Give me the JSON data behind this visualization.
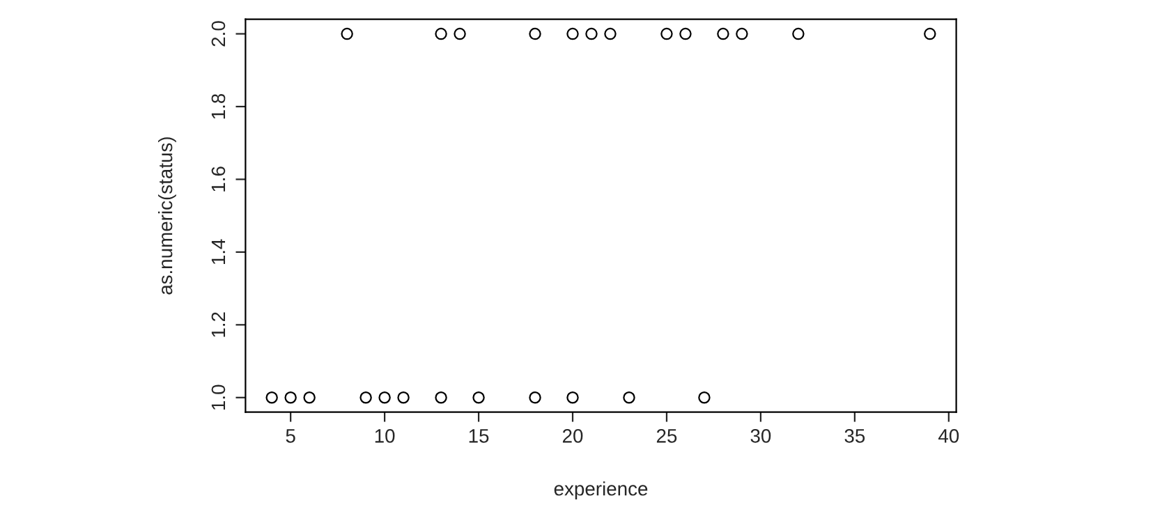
{
  "chart_data": {
    "type": "scatter",
    "xlabel": "experience",
    "ylabel": "as.numeric(status)",
    "series": [
      {
        "color": "#000000",
        "x": [
          8,
          13,
          14,
          18,
          20,
          21,
          22,
          25,
          26,
          28,
          29,
          32,
          39,
          4,
          5,
          6,
          9,
          10,
          11,
          13,
          15,
          18,
          20,
          23,
          27
        ],
        "values": [
          2,
          2,
          2,
          2,
          2,
          2,
          2,
          2,
          2,
          2,
          2,
          2,
          2,
          1,
          1,
          1,
          1,
          1,
          1,
          1,
          1,
          1,
          1,
          1,
          1
        ]
      }
    ],
    "xlim": [
      2.6,
      40.4
    ],
    "ylim": [
      0.96,
      2.04
    ],
    "xticks": [
      5,
      10,
      15,
      20,
      25,
      30,
      35,
      40
    ],
    "yticks": [
      {
        "value": 1,
        "label": "1.0"
      },
      1.2,
      1.4,
      1.6,
      1.8,
      {
        "value": 2,
        "label": "2.0"
      }
    ],
    "marker": "circle",
    "grid": false,
    "legend": false
  }
}
